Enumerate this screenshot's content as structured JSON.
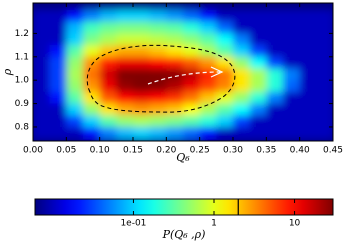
{
  "chart_data": {
    "type": "heatmap",
    "xlabel": "Q₆",
    "ylabel": "ρ",
    "colorbar_label": "P(Q₆ ,ρ)",
    "xlim": [
      0,
      0.45
    ],
    "ylim": [
      0.74,
      1.33
    ],
    "xticks": [
      {
        "value": 0,
        "label": "0.00"
      },
      0.05,
      {
        "value": 0.1,
        "label": "0.10"
      },
      0.15,
      {
        "value": 0.2,
        "label": "0.20"
      },
      0.25,
      {
        "value": 0.3,
        "label": "0.30"
      },
      0.35,
      {
        "value": 0.4,
        "label": "0.40"
      },
      0.45
    ],
    "yticks": [
      0.8,
      0.9,
      {
        "value": 1.0,
        "label": "1.0"
      },
      1.1,
      1.2
    ],
    "colormap": "jet",
    "log_scale": true,
    "clim": [
      0.006,
      30
    ],
    "cticks": [
      {
        "value": 0.1,
        "label": "1e-01"
      },
      1,
      10
    ],
    "contour_level": 2,
    "x_bins": [
      0,
      0.025,
      0.05,
      0.075,
      0.1,
      0.125,
      0.15,
      0.175,
      0.2,
      0.225,
      0.25,
      0.275,
      0.3,
      0.325,
      0.35,
      0.375,
      0.4,
      0.425,
      0.45
    ],
    "y_bins": [
      1.3,
      1.25,
      1.2,
      1.15,
      1.1,
      1.05,
      1.0,
      0.95,
      0.9,
      0.85,
      0.8,
      0.75
    ],
    "z": [
      [
        0.01,
        0.01,
        0.02,
        0.05,
        0.08,
        0.1,
        0.1,
        0.08,
        0.06,
        0.04,
        0.02,
        0.01,
        0.01,
        0.01,
        0.01,
        0.01,
        0.01,
        0.01
      ],
      [
        0.01,
        0.01,
        0.08,
        0.25,
        0.35,
        0.4,
        0.4,
        0.35,
        0.3,
        0.2,
        0.1,
        0.04,
        0.01,
        0.01,
        0.01,
        0.01,
        0.01,
        0.01
      ],
      [
        0.01,
        0.01,
        0.1,
        0.4,
        0.6,
        0.8,
        0.8,
        0.7,
        0.6,
        0.45,
        0.3,
        0.15,
        0.05,
        0.01,
        0.01,
        0.01,
        0.01,
        0.01
      ],
      [
        0.01,
        0.02,
        0.3,
        1,
        2,
        2.5,
        2.5,
        2,
        1.5,
        1,
        0.6,
        0.3,
        0.1,
        0.03,
        0.01,
        0.01,
        0.01,
        0.01
      ],
      [
        0.01,
        0.03,
        0.5,
        3,
        8,
        12,
        12,
        10,
        8,
        5,
        3,
        1.5,
        0.5,
        0.15,
        0.03,
        0.01,
        0.01,
        0.01
      ],
      [
        0.01,
        0.03,
        0.6,
        4,
        15,
        30,
        40,
        38,
        28,
        18,
        8,
        4,
        1.5,
        0.6,
        0.2,
        0.05,
        0.01,
        0.01
      ],
      [
        0.01,
        0.03,
        0.5,
        3,
        12,
        25,
        30,
        28,
        20,
        12,
        6,
        3.5,
        1.5,
        0.6,
        0.2,
        0.04,
        0.01,
        0.01
      ],
      [
        0.01,
        0.02,
        0.3,
        1.5,
        5,
        10,
        12,
        10,
        7,
        4,
        2,
        1,
        0.5,
        0.2,
        0.05,
        0.01,
        0.01,
        0.01
      ],
      [
        0.01,
        0.01,
        0.1,
        0.5,
        1.5,
        2.5,
        3,
        2.5,
        2,
        1.2,
        0.6,
        0.3,
        0.15,
        0.05,
        0.01,
        0.01,
        0.01,
        0.01
      ],
      [
        0.01,
        0.01,
        0.03,
        0.1,
        0.3,
        0.5,
        0.6,
        0.5,
        0.4,
        0.3,
        0.2,
        0.1,
        0.03,
        0.01,
        0.01,
        0.01,
        0.01,
        0.01
      ],
      [
        0.01,
        0.01,
        0.01,
        0.02,
        0.05,
        0.08,
        0.1,
        0.08,
        0.06,
        0.04,
        0.02,
        0.01,
        0.01,
        0.01,
        0.01,
        0.01,
        0.01,
        0.01
      ]
    ]
  }
}
